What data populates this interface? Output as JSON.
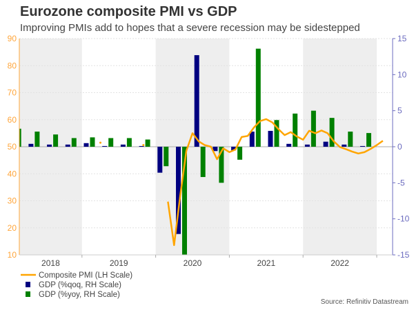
{
  "title": "Eurozone composite PMI vs GDP",
  "subtitle": "Improving PMIs add to hopes that a severe recession may be sidestepped",
  "source": "Source: Refinitiv Datastream",
  "colors": {
    "pmi": "#ffa500",
    "qoq": "#000080",
    "yoy": "#008000",
    "left_axis": "#ffa53a",
    "right_axis": "#6b6bbf",
    "band": "#eeeeee"
  },
  "chart_data": {
    "type": "bar",
    "title": "Eurozone composite PMI vs GDP",
    "left_axis": {
      "label": "LH Scale",
      "ylim": [
        10,
        90
      ],
      "ticks": [
        "10",
        "20",
        "30",
        "40",
        "50",
        "60",
        "70",
        "80",
        "90"
      ]
    },
    "right_axis": {
      "label": "RH Scale",
      "ylim": [
        -15,
        15
      ],
      "ticks": [
        "-15",
        "-10",
        "-5",
        "0",
        "5",
        "10",
        "15"
      ]
    },
    "x_ticks": [
      "2018",
      "2019",
      "2020",
      "2021",
      "2022"
    ],
    "shaded_years": [
      "2018",
      "2020",
      "2022"
    ],
    "legend": [
      "Composite PMI (LH Scale)",
      "GDP (%qoq, RH Scale)",
      "GDP (%yoy, RH Scale)"
    ],
    "legend_position": "bottom-left",
    "gdp": {
      "quarters": [
        "2018 Q1",
        "2018 Q2",
        "2018 Q3",
        "2018 Q4",
        "2019 Q1",
        "2019 Q2",
        "2019 Q3",
        "2019 Q4",
        "2020 Q1",
        "2020 Q2",
        "2020 Q3",
        "2020 Q4",
        "2021 Q1",
        "2021 Q2",
        "2021 Q3",
        "2021 Q4",
        "2022 Q1",
        "2022 Q2",
        "2022 Q3",
        "2022 Q4"
      ],
      "series": [
        {
          "name": "GDP (%qoq, RH Scale)",
          "values": [
            0.4,
            0.4,
            0.3,
            0.3,
            0.5,
            0.1,
            0.3,
            0.1,
            -3.6,
            -12.1,
            12.7,
            -0.6,
            -0.5,
            2.1,
            2.2,
            0.4,
            0.3,
            0.7,
            0.3,
            0.1
          ]
        },
        {
          "name": "GDP (%yoy, RH Scale)",
          "values": [
            2.5,
            2.1,
            1.7,
            1.2,
            1.3,
            1.2,
            1.2,
            1.0,
            -2.7,
            -15.0,
            -4.2,
            -5.0,
            -1.8,
            13.6,
            3.7,
            4.6,
            5.0,
            4.0,
            2.1,
            1.9
          ]
        }
      ]
    },
    "pmi": {
      "name": "Composite PMI (LH Scale)",
      "points": [
        {
          "month": "2019-04",
          "value": 51.5
        },
        {
          "month": "2019-11",
          "value": 50.6
        },
        {
          "month": "2020-03",
          "value": 29.7
        },
        {
          "month": "2020-04",
          "value": 13.6
        },
        {
          "month": "2020-05",
          "value": 31.9
        },
        {
          "month": "2020-06",
          "value": 48.5
        },
        {
          "month": "2020-07",
          "value": 55.0
        },
        {
          "month": "2020-08",
          "value": 52.0
        },
        {
          "month": "2020-09",
          "value": 50.6
        },
        {
          "month": "2020-10",
          "value": 50.0
        },
        {
          "month": "2020-11",
          "value": 45.4
        },
        {
          "month": "2020-12",
          "value": 49.4
        },
        {
          "month": "2021-01",
          "value": 48.0
        },
        {
          "month": "2021-02",
          "value": 49.0
        },
        {
          "month": "2021-03",
          "value": 53.6
        },
        {
          "month": "2021-04",
          "value": 54.0
        },
        {
          "month": "2021-05",
          "value": 57.1
        },
        {
          "month": "2021-06",
          "value": 59.5
        },
        {
          "month": "2021-07",
          "value": 60.2
        },
        {
          "month": "2021-08",
          "value": 59.0
        },
        {
          "month": "2021-09",
          "value": 56.5
        },
        {
          "month": "2021-10",
          "value": 54.3
        },
        {
          "month": "2021-11",
          "value": 55.4
        },
        {
          "month": "2021-12",
          "value": 53.8
        },
        {
          "month": "2022-01",
          "value": 52.6
        },
        {
          "month": "2022-02",
          "value": 55.9
        },
        {
          "month": "2022-03",
          "value": 55.0
        },
        {
          "month": "2022-04",
          "value": 56.0
        },
        {
          "month": "2022-05",
          "value": 55.0
        },
        {
          "month": "2022-06",
          "value": 52.0
        },
        {
          "month": "2022-07",
          "value": 49.9
        },
        {
          "month": "2022-08",
          "value": 49.1
        },
        {
          "month": "2022-09",
          "value": 48.2
        },
        {
          "month": "2022-10",
          "value": 47.5
        },
        {
          "month": "2022-11",
          "value": 48.0
        },
        {
          "month": "2022-12",
          "value": 49.2
        },
        {
          "month": "2023-01",
          "value": 50.6
        },
        {
          "month": "2023-02",
          "value": 52.2
        }
      ]
    }
  }
}
